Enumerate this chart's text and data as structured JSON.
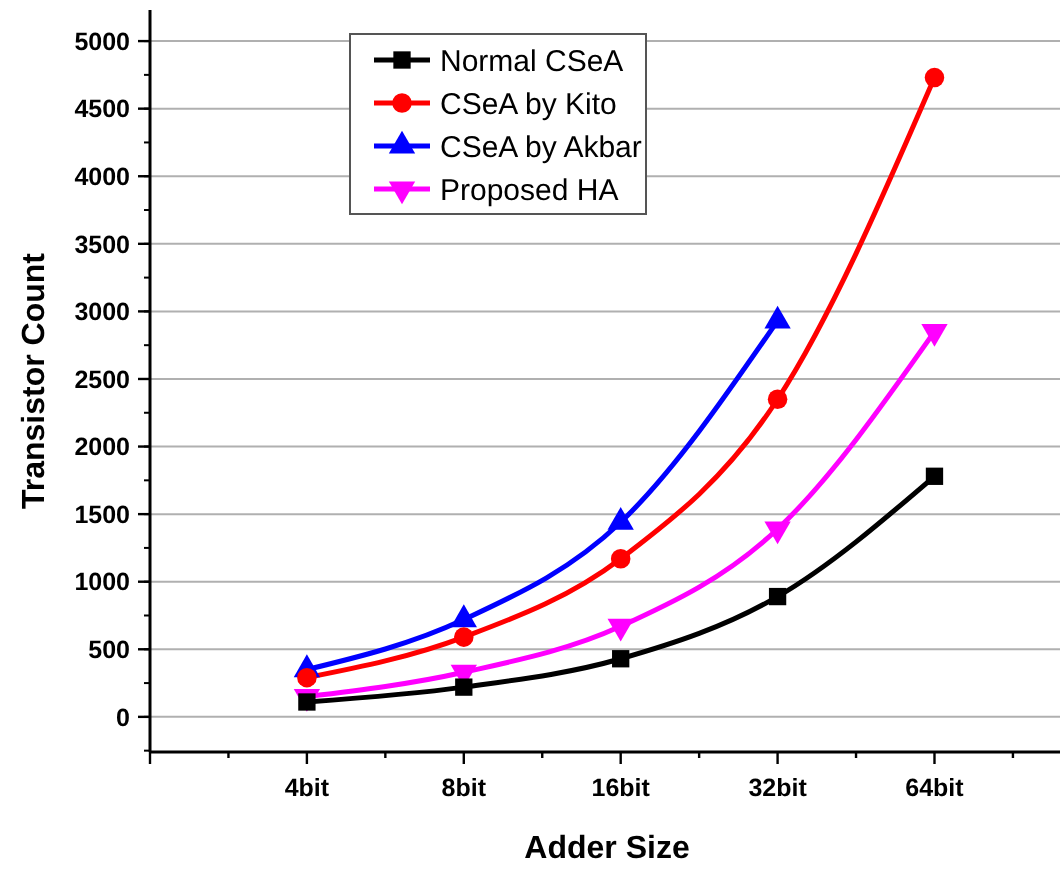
{
  "chart_data": {
    "type": "line",
    "xlabel": "Adder Size",
    "ylabel": "Transistor Count",
    "categories": [
      "4bit",
      "8bit",
      "16bit",
      "32bit",
      "64bit"
    ],
    "series": [
      {
        "name": "Normal CSeA",
        "color": "#000000",
        "marker": "square",
        "values": [
          110,
          220,
          430,
          890,
          1780
        ]
      },
      {
        "name": "CSeA by Kito",
        "color": "#ff0000",
        "marker": "circle",
        "values": [
          290,
          590,
          1170,
          2350,
          4730
        ]
      },
      {
        "name": "CSeA by Akbar",
        "color": "#0000ff",
        "marker": "triangle",
        "values": [
          350,
          720,
          1440,
          2930,
          null
        ]
      },
      {
        "name": "Proposed HA",
        "color": "#ff00ff",
        "marker": "triangle-down",
        "values": [
          150,
          330,
          670,
          1390,
          2850
        ]
      }
    ],
    "ylim": [
      -260,
      5230
    ],
    "yticks": [
      0,
      500,
      1000,
      1500,
      2000,
      2500,
      3000,
      3500,
      4000,
      4500,
      5000
    ],
    "grid": "y",
    "legend": "top",
    "line_style": "solid"
  }
}
